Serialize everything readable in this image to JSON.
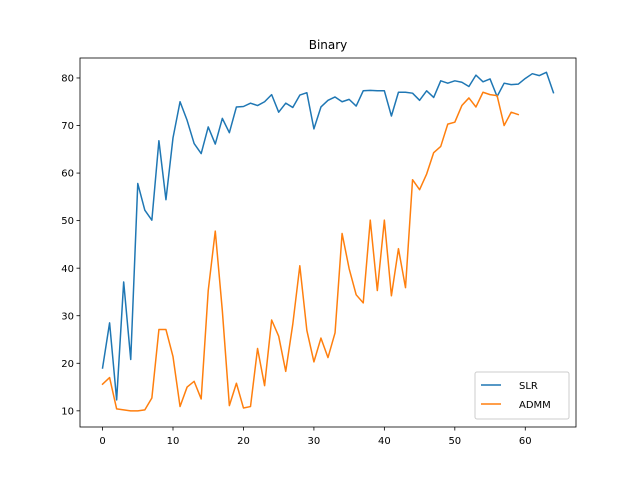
{
  "chart_data": {
    "type": "line",
    "title": "Binary",
    "xlabel": "",
    "ylabel": "",
    "xlim": [
      -3.2,
      67.2
    ],
    "ylim": [
      6.6,
      84.2
    ],
    "xticks": [
      0,
      10,
      20,
      30,
      40,
      50,
      60
    ],
    "yticks": [
      10,
      20,
      30,
      40,
      50,
      60,
      70,
      80
    ],
    "grid": false,
    "legend_position": "lower-right",
    "series": [
      {
        "name": "SLR",
        "color": "#1f77b4",
        "x": [
          0,
          1,
          2,
          3,
          4,
          5,
          6,
          7,
          8,
          9,
          10,
          11,
          12,
          13,
          14,
          15,
          16,
          17,
          18,
          19,
          20,
          21,
          22,
          23,
          24,
          25,
          26,
          27,
          28,
          29,
          30,
          31,
          32,
          33,
          34,
          35,
          36,
          37,
          38,
          39,
          40,
          41,
          42,
          43,
          44,
          45,
          46,
          47,
          48,
          49,
          50,
          51,
          52,
          53,
          54,
          55,
          56,
          57,
          58,
          59,
          60,
          61,
          62,
          63,
          64
        ],
        "values": [
          19.0,
          28.5,
          12.3,
          37.1,
          20.8,
          57.8,
          52.2,
          50.1,
          66.8,
          54.4,
          67.4,
          75.0,
          71.1,
          66.2,
          64.1,
          69.7,
          66.1,
          71.5,
          68.5,
          73.9,
          74.0,
          74.7,
          74.2,
          75.0,
          76.5,
          72.8,
          74.7,
          73.8,
          76.4,
          76.9,
          69.3,
          73.9,
          75.3,
          76.0,
          75.0,
          75.5,
          74.1,
          77.3,
          77.4,
          77.3,
          77.3,
          72.0,
          77.0,
          77.0,
          76.8,
          75.3,
          77.3,
          75.9,
          79.4,
          78.9,
          79.4,
          79.1,
          78.2,
          80.6,
          79.2,
          79.8,
          76.1,
          78.9,
          78.6,
          78.7,
          79.9,
          80.9,
          80.5,
          81.2,
          76.9
        ]
      },
      {
        "name": "ADMM",
        "color": "#ff7f0e",
        "x": [
          0,
          1,
          2,
          3,
          4,
          5,
          6,
          7,
          8,
          9,
          10,
          11,
          12,
          13,
          14,
          15,
          16,
          17,
          18,
          19,
          20,
          21,
          22,
          23,
          24,
          25,
          26,
          27,
          28,
          29,
          30,
          31,
          32,
          33,
          34,
          35,
          36,
          37,
          38,
          39,
          40,
          41,
          42,
          43,
          44,
          45,
          46,
          47,
          48,
          49,
          50,
          51,
          52,
          53,
          54,
          55,
          56,
          57,
          58,
          59
        ],
        "values": [
          15.6,
          17.0,
          10.4,
          10.2,
          10.0,
          10.0,
          10.2,
          12.7,
          27.1,
          27.1,
          21.4,
          10.9,
          15.0,
          16.2,
          12.5,
          35.3,
          47.8,
          31.1,
          11.1,
          15.8,
          10.6,
          10.9,
          23.1,
          15.3,
          29.1,
          25.7,
          18.3,
          28.2,
          40.5,
          26.9,
          20.3,
          25.3,
          21.2,
          26.4,
          47.3,
          39.9,
          34.4,
          32.7,
          50.1,
          35.3,
          50.1,
          34.2,
          44.1,
          35.9,
          58.6,
          56.5,
          59.8,
          64.3,
          65.6,
          70.3,
          70.7,
          74.2,
          75.8,
          73.9,
          77.0,
          76.5,
          76.3,
          70.0,
          72.8,
          72.3
        ]
      }
    ]
  }
}
